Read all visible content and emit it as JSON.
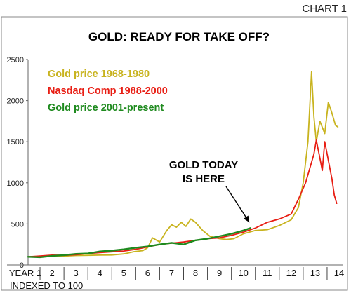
{
  "corner_label": "CHART 1",
  "chart_data": {
    "type": "line",
    "title": "GOLD: READY FOR TAKE OFF?",
    "xlabel": "",
    "ylabel": "",
    "xlim": [
      1,
      14
    ],
    "ylim": [
      0,
      2500
    ],
    "yticks": [
      0,
      500,
      1000,
      1500,
      2000,
      2500
    ],
    "grid": false,
    "legend": "top-left",
    "x_tick_labels": [
      "YEAR 1",
      "2",
      "3",
      "4",
      "5",
      "6",
      "7",
      "8",
      "9",
      "10",
      "11",
      "12",
      "13",
      "14"
    ],
    "x_note": "INDEXED TO 100",
    "series": [
      {
        "name": "Gold price 1968-1980",
        "color": "#c8b31e",
        "x": [
          1,
          1.5,
          2,
          2.5,
          3,
          3.5,
          4,
          4.5,
          5,
          5.4,
          5.8,
          6.0,
          6.2,
          6.5,
          6.8,
          7.0,
          7.2,
          7.4,
          7.6,
          7.8,
          8.0,
          8.3,
          8.6,
          9.0,
          9.3,
          9.6,
          10.0,
          10.5,
          11.0,
          11.5,
          12.0,
          12.3,
          12.5,
          12.7,
          12.85,
          12.95,
          13.05,
          13.2,
          13.4,
          13.55,
          13.7,
          13.85,
          13.95
        ],
        "values": [
          100,
          105,
          110,
          108,
          115,
          118,
          120,
          122,
          135,
          160,
          175,
          210,
          330,
          280,
          420,
          490,
          460,
          520,
          470,
          560,
          520,
          420,
          350,
          320,
          310,
          320,
          380,
          420,
          430,
          480,
          550,
          700,
          1000,
          1500,
          2350,
          1800,
          1500,
          1750,
          1600,
          1980,
          1850,
          1700,
          1680
        ]
      },
      {
        "name": "Nasdaq Comp 1988-2000",
        "color": "#e81e14",
        "x": [
          1,
          1.5,
          2,
          2.5,
          3,
          3.5,
          4,
          4.5,
          5,
          5.5,
          6,
          6.5,
          7,
          7.5,
          8,
          8.5,
          9,
          9.5,
          10,
          10.5,
          11,
          11.5,
          12,
          12.3,
          12.6,
          12.8,
          12.95,
          13.05,
          13.2,
          13.3,
          13.4,
          13.5,
          13.6,
          13.7,
          13.8,
          13.9
        ],
        "values": [
          100,
          110,
          120,
          118,
          125,
          140,
          150,
          160,
          170,
          190,
          220,
          250,
          265,
          280,
          300,
          320,
          330,
          360,
          400,
          450,
          520,
          560,
          620,
          800,
          1000,
          1200,
          1350,
          1520,
          1300,
          1150,
          1500,
          1350,
          1200,
          1050,
          850,
          750
        ]
      },
      {
        "name": "Gold price 2001-present",
        "color": "#1e8a1e",
        "x": [
          1,
          1.5,
          2,
          2.5,
          3,
          3.5,
          4,
          4.5,
          5,
          5.5,
          6,
          6.5,
          7,
          7.5,
          8,
          8.5,
          9,
          9.5,
          10,
          10.3
        ],
        "values": [
          100,
          95,
          110,
          120,
          135,
          140,
          165,
          175,
          190,
          210,
          225,
          250,
          270,
          250,
          300,
          320,
          350,
          380,
          420,
          450
        ]
      }
    ],
    "annotations": [
      {
        "text_lines": [
          "GOLD TODAY",
          "IS HERE"
        ],
        "x": 10.25,
        "y": 450
      }
    ]
  }
}
